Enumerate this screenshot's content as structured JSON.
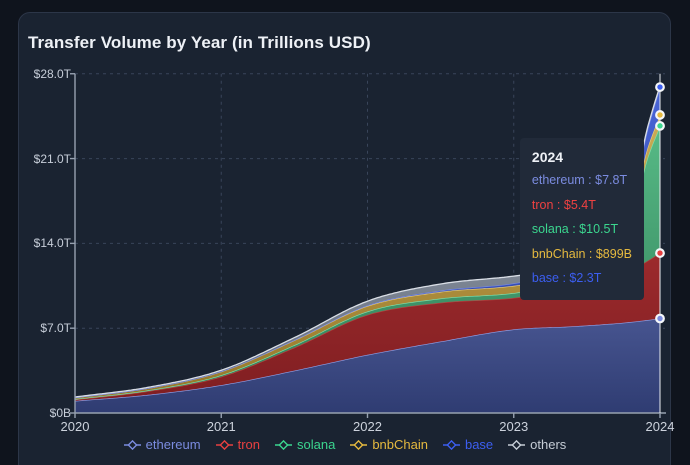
{
  "chart_data": {
    "type": "area",
    "stacked": true,
    "title": "Transfer Volume by Year (in Trillions USD)",
    "unit": "trillions USD per year",
    "ylim": [
      0,
      28
    ],
    "grid": "dashed",
    "y_axis": {
      "ticks": [
        {
          "value": 0,
          "label": "$0B"
        },
        {
          "value": 7,
          "label": "$7.0T"
        },
        {
          "value": 14,
          "label": "$14.0T"
        },
        {
          "value": 21,
          "label": "$21.0T"
        },
        {
          "value": 28,
          "label": "$28.0T"
        }
      ]
    },
    "x_axis": {
      "ticks": [
        {
          "value": 2020,
          "label": "2020"
        },
        {
          "value": 2021,
          "label": "2021"
        },
        {
          "value": 2022,
          "label": "2022"
        },
        {
          "value": 2023,
          "label": "2023"
        },
        {
          "value": 2024,
          "label": "2024"
        }
      ]
    },
    "x": [
      2020,
      2020.5,
      2021,
      2021.5,
      2022,
      2022.5,
      2023,
      2023.4,
      2023.75,
      2023.9,
      2024
    ],
    "series": [
      {
        "name": "ethereum",
        "legend_color": "#7b8ce0",
        "fill_top": "#8494dd",
        "fill_bottom": "#2f3c72",
        "edge": "#8fa0e8",
        "marker": true,
        "values": [
          1.0,
          1.5,
          2.3,
          3.5,
          4.8,
          5.9,
          6.9,
          7.15,
          7.45,
          7.65,
          7.8
        ]
      },
      {
        "name": "tron",
        "legend_color": "#e84040",
        "fill_top": "#c0393b",
        "fill_bottom": "#7d1d20",
        "edge": "#b8423f",
        "marker": true,
        "values": [
          0.1,
          0.3,
          0.7,
          1.9,
          3.3,
          3.2,
          2.6,
          3.1,
          4.0,
          4.8,
          5.4
        ]
      },
      {
        "name": "solana",
        "legend_color": "#3bd68f",
        "fill_top": "#5ec68f",
        "fill_bottom": "#2f7a55",
        "edge": "#7fe0ae",
        "marker": true,
        "values": [
          0.05,
          0.07,
          0.12,
          0.2,
          0.28,
          0.35,
          0.4,
          0.5,
          0.7,
          8.0,
          10.5
        ]
      },
      {
        "name": "bnbChain",
        "legend_color": "#e5b93f",
        "fill_top": "#d4b45c",
        "fill_bottom": "#937428",
        "edge": "#e6cd82",
        "marker": true,
        "values": [
          0.12,
          0.18,
          0.3,
          0.4,
          0.45,
          0.55,
          0.6,
          0.62,
          0.7,
          0.8,
          0.899
        ]
      },
      {
        "name": "base",
        "legend_color": "#3c5ef0",
        "fill_top": "#4a66d8",
        "fill_bottom": "#2b3f9e",
        "edge": "#7388ea",
        "marker": true,
        "values": [
          0.0,
          0.0,
          0.01,
          0.02,
          0.05,
          0.1,
          0.2,
          0.35,
          0.6,
          1.4,
          2.3
        ]
      },
      {
        "name": "others",
        "legend_color": "#c6cdd6",
        "fill_top": "#aab3c0",
        "fill_bottom": "#5d6675",
        "edge": "#d9dee6",
        "marker": false,
        "values": [
          0.05,
          0.07,
          0.1,
          0.2,
          0.35,
          0.55,
          0.6,
          0.35,
          0.22,
          0.18,
          0.15
        ]
      }
    ],
    "hover": {
      "x": 2024,
      "line_color": "#e6e9ee",
      "marker_ring": "#f5f7fa"
    }
  },
  "tooltip": {
    "title": "2024",
    "rows": [
      {
        "label": "ethereum",
        "value": "$7.8T",
        "color": "#7b8ce0"
      },
      {
        "label": "tron",
        "value": "$5.4T",
        "color": "#ef4141"
      },
      {
        "label": "solana",
        "value": "$10.5T",
        "color": "#3bd68f"
      },
      {
        "label": "bnbChain",
        "value": "$899B",
        "color": "#e5b93f"
      },
      {
        "label": "base",
        "value": "$2.3T",
        "color": "#3c5ef0"
      }
    ]
  },
  "legend": {
    "items": [
      {
        "label": "ethereum",
        "color": "#7b8ce0"
      },
      {
        "label": "tron",
        "color": "#e84040"
      },
      {
        "label": "solana",
        "color": "#3bd68f"
      },
      {
        "label": "bnbChain",
        "color": "#e5b93f"
      },
      {
        "label": "base",
        "color": "#3c5ef0"
      },
      {
        "label": "others",
        "color": "#c6cdd6"
      }
    ]
  },
  "colors": {
    "page_bg": "#0f141d",
    "card_bg": "#1a2331",
    "card_border": "#2c3648",
    "axis": "#97a1b0",
    "gridline": "#39455a",
    "axis_label": "#c7ced9",
    "tooltip_bg": "#212a39"
  }
}
